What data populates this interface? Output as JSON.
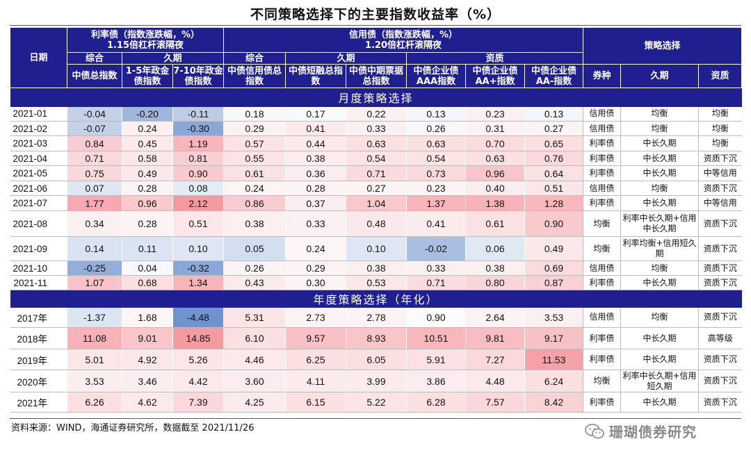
{
  "title": "不同策略选择下的主要指数收益率（%）",
  "header": {
    "date": "日期",
    "rate_group": "利率债（指数涨跌幅，%）",
    "rate_leverage": "1.15倍杠杆滚隔夜",
    "credit_group": "信用债（指数涨跌幅，%）",
    "credit_leverage": "1.20倍杠杆滚隔夜",
    "strategy": "策略选择",
    "rate_composite": "综合",
    "rate_duration": "久期",
    "credit_composite": "综合",
    "credit_duration": "久期",
    "credit_quality": "资质",
    "cols": [
      "中债总指数",
      "1-5年政金债指数",
      "7-10年政金债指数",
      "中债信用债总指数",
      "中债短融总指数",
      "中债中期票据总指数",
      "中债企业债AAA指数",
      "中债企业债AA+指数",
      "中债企业债AA-指数"
    ],
    "strategy_cols": [
      "券种",
      "久期",
      "资质"
    ]
  },
  "sections": {
    "monthly": "月度策略选择",
    "annual": "年度策略选择（年化）"
  },
  "monthly_rows": [
    {
      "date": "2021-01",
      "values": [
        "-0.04",
        "-0.20",
        "-0.11",
        "0.18",
        "0.17",
        "0.22",
        "0.13",
        "0.23",
        "0.13"
      ],
      "type": "信用债",
      "duration": "均衡",
      "quality": "均衡"
    },
    {
      "date": "2021-02",
      "values": [
        "-0.07",
        "0.24",
        "-0.30",
        "0.29",
        "0.41",
        "0.33",
        "0.26",
        "0.31",
        "0.27"
      ],
      "type": "信用债",
      "duration": "均衡",
      "quality": "均衡"
    },
    {
      "date": "2021-03",
      "values": [
        "0.84",
        "0.45",
        "1.19",
        "0.57",
        "0.44",
        "0.63",
        "0.63",
        "0.70",
        "0.65"
      ],
      "type": "利率债",
      "duration": "中长久期",
      "quality": "均衡"
    },
    {
      "date": "2021-04",
      "values": [
        "0.71",
        "0.58",
        "0.81",
        "0.55",
        "0.38",
        "0.54",
        "0.54",
        "0.63",
        "0.76"
      ],
      "type": "利率债",
      "duration": "中长久期",
      "quality": "资质下沉"
    },
    {
      "date": "2021-05",
      "values": [
        "0.75",
        "0.49",
        "0.90",
        "0.61",
        "0.36",
        "0.71",
        "0.73",
        "0.96",
        "0.64"
      ],
      "type": "利率债",
      "duration": "中长久期",
      "quality": "中等信用"
    },
    {
      "date": "2021-06",
      "values": [
        "0.07",
        "0.28",
        "0.08",
        "0.24",
        "0.28",
        "0.27",
        "0.23",
        "0.40",
        "0.51"
      ],
      "type": "信用债",
      "duration": "均衡",
      "quality": "资质下沉"
    },
    {
      "date": "2021-07",
      "values": [
        "1.77",
        "0.96",
        "2.12",
        "0.86",
        "0.37",
        "1.04",
        "1.37",
        "1.38",
        "1.28"
      ],
      "type": "利率债",
      "duration": "中长久期",
      "quality": "中等信用"
    },
    {
      "date": "2021-08",
      "values": [
        "0.34",
        "0.28",
        "0.51",
        "0.38",
        "0.33",
        "0.48",
        "0.41",
        "0.61",
        "0.90"
      ],
      "type": "均衡",
      "duration": "利率中长久期+信用中长久期",
      "quality": "资质下沉"
    },
    {
      "date": "2021-09",
      "values": [
        "0.14",
        "0.11",
        "0.10",
        "0.05",
        "0.24",
        "0.10",
        "-0.02",
        "0.06",
        "0.49"
      ],
      "type": "均衡",
      "duration": "利率均衡+信用短久期",
      "quality": "资质下沉"
    },
    {
      "date": "2021-10",
      "values": [
        "-0.25",
        "0.04",
        "-0.32",
        "0.26",
        "0.29",
        "0.38",
        "0.33",
        "0.38",
        "0.69"
      ],
      "type": "信用债",
      "duration": "均衡",
      "quality": "资质下沉"
    },
    {
      "date": "2021-11",
      "values": [
        "1.07",
        "0.68",
        "1.34",
        "0.43",
        "0.30",
        "0.53",
        "0.71",
        "0.80",
        "0.87"
      ],
      "type": "利率债",
      "duration": "中长久期",
      "quality": "资质下沉"
    }
  ],
  "annual_rows": [
    {
      "date": "2017年",
      "values": [
        "-1.37",
        "1.68",
        "-4.48",
        "5.31",
        "2.73",
        "2.78",
        "0.90",
        "2.64",
        "3.53"
      ],
      "type": "信用债",
      "duration": "均衡",
      "quality": "资质下沉"
    },
    {
      "date": "2018年",
      "values": [
        "11.08",
        "9.01",
        "14.85",
        "6.10",
        "9.57",
        "8.93",
        "10.51",
        "9.81",
        "9.17"
      ],
      "type": "利率债",
      "duration": "中长久期",
      "quality": "高等级"
    },
    {
      "date": "2019年",
      "values": [
        "5.01",
        "4.92",
        "5.26",
        "4.46",
        "6.25",
        "6.05",
        "5.91",
        "7.27",
        "11.53"
      ],
      "type": "利率债",
      "duration": "中长久期",
      "quality": "资质下沉"
    },
    {
      "date": "2020年",
      "values": [
        "3.53",
        "3.46",
        "4.42",
        "3.60",
        "4.11",
        "3.99",
        "3.86",
        "4.48",
        "6.24"
      ],
      "type": "均衡",
      "duration": "利率中长久期+信用短久期",
      "quality": "资质下沉"
    },
    {
      "date": "2021年",
      "values": [
        "6.26",
        "4.62",
        "7.39",
        "4.25",
        "6.15",
        "5.22",
        "6.28",
        "7.57",
        "8.42"
      ],
      "type": "利率债",
      "duration": "中长久期",
      "quality": "资质下沉"
    }
  ],
  "monthly_colors": [
    [
      "#c3d2e9",
      "#9fb6dd",
      "#bccde7",
      "#f8f8fb",
      "#f7f9fb",
      "#fbeff0",
      "#f2f5fa",
      "#faf0f1",
      "#f2f5fa"
    ],
    [
      "#c3d2e9",
      "#fbeff0",
      "#8aa7d6",
      "#fbf2f3",
      "#fbeaec",
      "#fbf0f1",
      "#f9f7f8",
      "#fbf2f3",
      "#fbf4f5"
    ],
    [
      "#f8cdd1",
      "#fbe9eb",
      "#f6b6bb",
      "#fbe3e5",
      "#fbe9eb",
      "#fbe0e2",
      "#fbe0e2",
      "#fadcdf",
      "#fadfe1"
    ],
    [
      "#fad8db",
      "#fbe6e8",
      "#f8cfd2",
      "#fbe4e6",
      "#fbecee",
      "#fbe4e6",
      "#fbe4e6",
      "#fbe0e2",
      "#fadadd"
    ],
    [
      "#fad7da",
      "#fbe8ea",
      "#f8cace",
      "#fbe1e3",
      "#fbedef",
      "#fbdadd",
      "#fad9dc",
      "#f9c5ca",
      "#fbe1e3"
    ],
    [
      "#dfe7f3",
      "#fbf3f4",
      "#e3ebf5",
      "#fbf5f6",
      "#fbf3f4",
      "#fbf3f4",
      "#fbf5f6",
      "#fbeced",
      "#fbe7e9"
    ],
    [
      "#f6a9b0",
      "#f8cace",
      "#f39aa1",
      "#f8cdd1",
      "#fbedef",
      "#f8c8cc",
      "#f7b4ba",
      "#f7b3b9",
      "#f7b8bd"
    ],
    [
      "#fbf0f1",
      "#fbf3f4",
      "#fbe7e9",
      "#fbeff0",
      "#fbf1f2",
      "#fbe8ea",
      "#fbebed",
      "#fbe1e3",
      "#f8cacd"
    ],
    [
      "#d9e3f1",
      "#dae4f2",
      "#dde6f2",
      "#d3dfef",
      "#fbf5f6",
      "#dde6f2",
      "#a9bfe1",
      "#e0e8f3",
      "#fbe8ea"
    ],
    [
      "#93afd9",
      "#f6f8fb",
      "#8aa7d6",
      "#fbf4f5",
      "#fbf3f4",
      "#fbeff0",
      "#fbf0f1",
      "#fbeff0",
      "#fadbde"
    ],
    [
      "#f8c3c8",
      "#fadee1",
      "#f7b5ba",
      "#fbeaec",
      "#fbf3f4",
      "#fbe6e8",
      "#fadcdf",
      "#fad5d8",
      "#f9d1d4"
    ]
  ],
  "annual_colors": [
    [
      "#dce5f2",
      "#fbf5f6",
      "#6f93cc",
      "#fbe5e7",
      "#fbf3f4",
      "#fbf3f4",
      "#fbfafc",
      "#fbf3f4",
      "#fbf0f1"
    ],
    [
      "#f7b2b8",
      "#f8c6ca",
      "#f49ba2",
      "#fbe0e2",
      "#f7c1c6",
      "#f8c5c9",
      "#f7b7bc",
      "#f7bdc2",
      "#f8c1c6"
    ],
    [
      "#fbe6e8",
      "#fbe7e9",
      "#fbe5e7",
      "#fbe9eb",
      "#fbdfe1",
      "#fbe0e2",
      "#fbe1e3",
      "#fad8db",
      "#f5a1a8"
    ],
    [
      "#fbeef0",
      "#fbeef0",
      "#fbe9eb",
      "#fbedef",
      "#fbebed",
      "#fbebed",
      "#fbedef",
      "#fbe9eb",
      "#fbe0e2"
    ],
    [
      "#fbdfe1",
      "#fbe9eb",
      "#fad8db",
      "#fbebed",
      "#fbdfe1",
      "#fbe4e6",
      "#fbdfe1",
      "#fad7da",
      "#f9d2d5"
    ]
  ],
  "source": "资料来源：WIND，海通证券研究所，数据截至 2021/11/26",
  "watermark": "珊瑚债券研究"
}
